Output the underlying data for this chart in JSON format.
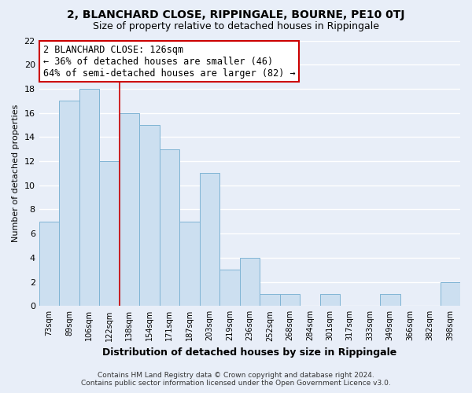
{
  "title": "2, BLANCHARD CLOSE, RIPPINGALE, BOURNE, PE10 0TJ",
  "subtitle": "Size of property relative to detached houses in Rippingale",
  "xlabel": "Distribution of detached houses by size in Rippingale",
  "ylabel": "Number of detached properties",
  "bar_labels": [
    "73sqm",
    "89sqm",
    "106sqm",
    "122sqm",
    "138sqm",
    "154sqm",
    "171sqm",
    "187sqm",
    "203sqm",
    "219sqm",
    "236sqm",
    "252sqm",
    "268sqm",
    "284sqm",
    "301sqm",
    "317sqm",
    "333sqm",
    "349sqm",
    "366sqm",
    "382sqm",
    "398sqm"
  ],
  "bar_values": [
    7,
    17,
    18,
    12,
    16,
    15,
    13,
    7,
    11,
    3,
    4,
    1,
    1,
    0,
    1,
    0,
    0,
    1,
    0,
    0,
    2
  ],
  "bar_color": "#ccdff0",
  "bar_edge_color": "#7fb4d4",
  "highlight_index": 3,
  "highlight_line_color": "#cc0000",
  "annotation_title": "2 BLANCHARD CLOSE: 126sqm",
  "annotation_line1": "← 36% of detached houses are smaller (46)",
  "annotation_line2": "64% of semi-detached houses are larger (82) →",
  "annotation_box_facecolor": "#ffffff",
  "annotation_box_edgecolor": "#cc0000",
  "ylim": [
    0,
    22
  ],
  "yticks": [
    0,
    2,
    4,
    6,
    8,
    10,
    12,
    14,
    16,
    18,
    20,
    22
  ],
  "footer_line1": "Contains HM Land Registry data © Crown copyright and database right 2024.",
  "footer_line2": "Contains public sector information licensed under the Open Government Licence v3.0.",
  "background_color": "#e8eef8",
  "grid_color": "#ffffff",
  "title_fontsize": 10,
  "subtitle_fontsize": 9,
  "annotation_fontsize": 8.5,
  "ylabel_fontsize": 8,
  "xlabel_fontsize": 9
}
